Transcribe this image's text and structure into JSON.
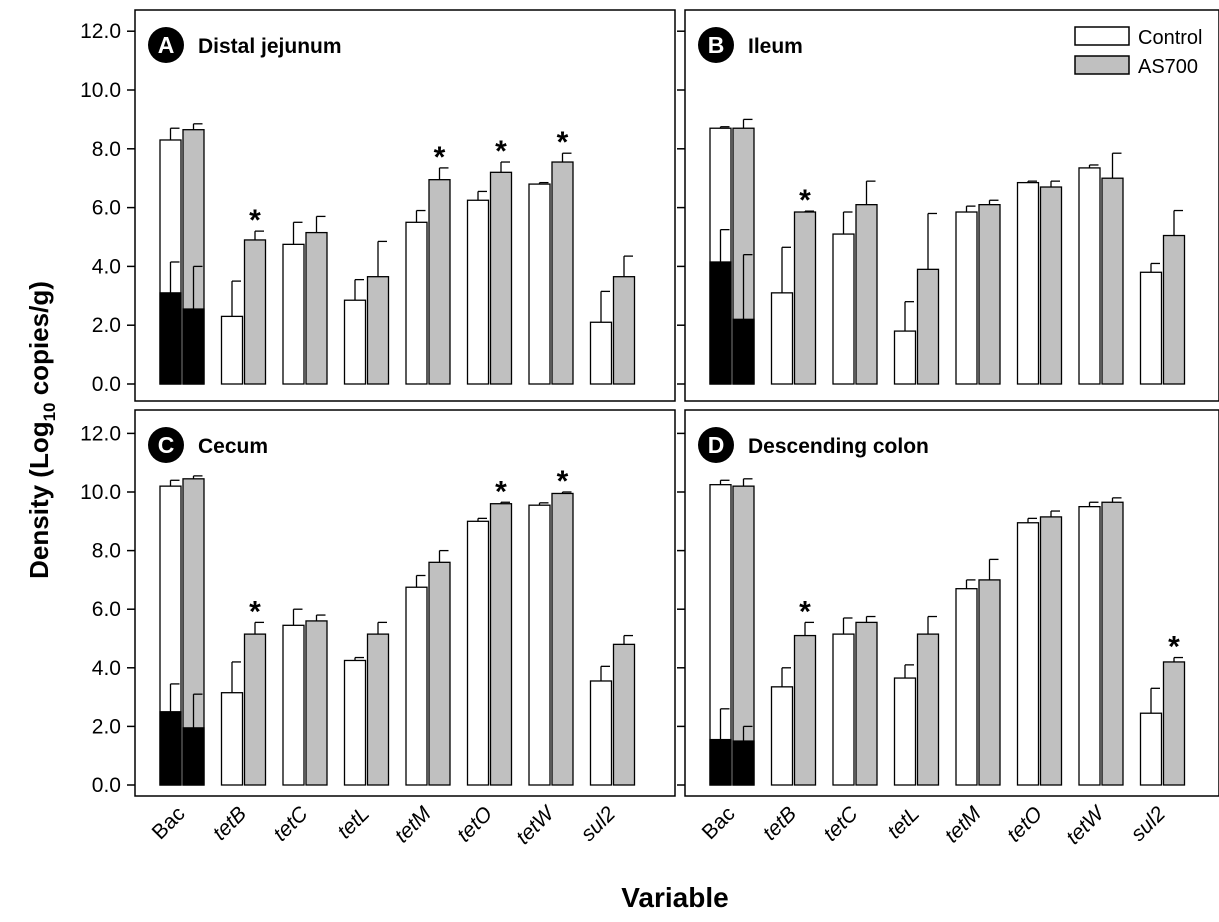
{
  "figure": {
    "y_axis_label": "Density (Log",
    "y_axis_label_sub": "10",
    "y_axis_label_tail": " copies/g)",
    "x_axis_label": "Variable",
    "legend": [
      "Control",
      "AS700"
    ],
    "colors": {
      "control": "#ffffff",
      "as700": "#c0c0c0",
      "black_portion": "#000000"
    }
  },
  "chart_data": [
    {
      "type": "bar",
      "panel": "A",
      "title": "Distal jejunum",
      "categories": [
        "Bac",
        "tetB",
        "tetC",
        "tetL",
        "tetM",
        "tetO",
        "tetW",
        "sul2"
      ],
      "ylim": [
        0,
        12
      ],
      "yticks": [
        "0.0",
        "2.0",
        "4.0",
        "6.0",
        "8.0",
        "10.0",
        "12.0"
      ],
      "series": [
        {
          "name": "Control",
          "values": [
            8.3,
            2.3,
            4.75,
            2.85,
            5.5,
            6.25,
            6.8,
            2.1
          ],
          "errors": [
            0.4,
            1.2,
            0.75,
            0.7,
            0.4,
            0.3,
            0.05,
            1.05
          ]
        },
        {
          "name": "AS700",
          "values": [
            8.65,
            4.9,
            5.15,
            3.65,
            6.95,
            7.2,
            7.55,
            3.65
          ],
          "errors": [
            0.2,
            0.3,
            0.55,
            1.2,
            0.4,
            0.35,
            0.3,
            0.7
          ]
        }
      ],
      "inner": {
        "control": 3.1,
        "as700": 2.55,
        "control_err": 1.05,
        "as700_err": 1.45
      },
      "significant": [
        false,
        true,
        false,
        false,
        true,
        true,
        true,
        false
      ]
    },
    {
      "type": "bar",
      "panel": "B",
      "title": "Ileum",
      "categories": [
        "Bac",
        "tetB",
        "tetC",
        "tetL",
        "tetM",
        "tetO",
        "tetW",
        "sul2"
      ],
      "ylim": [
        0,
        12
      ],
      "yticks": [
        "0.0",
        "2.0",
        "4.0",
        "6.0",
        "8.0",
        "10.0",
        "12.0"
      ],
      "series": [
        {
          "name": "Control",
          "values": [
            8.7,
            3.1,
            5.1,
            1.8,
            5.85,
            6.85,
            7.35,
            3.8
          ],
          "errors": [
            0.05,
            1.55,
            0.75,
            1.0,
            0.2,
            0.05,
            0.1,
            0.3
          ]
        },
        {
          "name": "AS700",
          "values": [
            8.7,
            5.85,
            6.1,
            3.9,
            6.1,
            6.7,
            7.0,
            5.05
          ],
          "errors": [
            0.3,
            0.03,
            0.8,
            1.9,
            0.15,
            0.2,
            0.85,
            0.85
          ]
        }
      ],
      "inner": {
        "control": 4.15,
        "as700": 2.2,
        "control_err": 1.1,
        "as700_err": 2.2
      },
      "significant": [
        false,
        true,
        false,
        false,
        false,
        false,
        false,
        false
      ]
    },
    {
      "type": "bar",
      "panel": "C",
      "title": "Cecum",
      "categories": [
        "Bac",
        "tetB",
        "tetC",
        "tetL",
        "tetM",
        "tetO",
        "tetW",
        "sul2"
      ],
      "ylim": [
        0,
        12
      ],
      "yticks": [
        "0.0",
        "2.0",
        "4.0",
        "6.0",
        "8.0",
        "10.0",
        "12.0"
      ],
      "series": [
        {
          "name": "Control",
          "values": [
            10.2,
            3.15,
            5.45,
            4.25,
            6.75,
            9.0,
            9.55,
            3.55
          ],
          "errors": [
            0.2,
            1.05,
            0.55,
            0.1,
            0.4,
            0.1,
            0.08,
            0.5
          ]
        },
        {
          "name": "AS700",
          "values": [
            10.45,
            5.15,
            5.6,
            5.15,
            7.6,
            9.6,
            9.95,
            4.8
          ],
          "errors": [
            0.1,
            0.4,
            0.2,
            0.4,
            0.4,
            0.05,
            0.05,
            0.3
          ]
        }
      ],
      "inner": {
        "control": 2.5,
        "as700": 1.95,
        "control_err": 0.95,
        "as700_err": 1.15
      },
      "significant": [
        false,
        true,
        false,
        false,
        false,
        true,
        true,
        false
      ]
    },
    {
      "type": "bar",
      "panel": "D",
      "title": "Descending colon",
      "categories": [
        "Bac",
        "tetB",
        "tetC",
        "tetL",
        "tetM",
        "tetO",
        "tetW",
        "sul2"
      ],
      "ylim": [
        0,
        12
      ],
      "yticks": [
        "0.0",
        "2.0",
        "4.0",
        "6.0",
        "8.0",
        "10.0",
        "12.0"
      ],
      "series": [
        {
          "name": "Control",
          "values": [
            10.25,
            3.35,
            5.15,
            3.65,
            6.7,
            8.95,
            9.5,
            2.45
          ],
          "errors": [
            0.15,
            0.65,
            0.55,
            0.45,
            0.3,
            0.15,
            0.15,
            0.85
          ]
        },
        {
          "name": "AS700",
          "values": [
            10.2,
            5.1,
            5.55,
            5.15,
            7.0,
            9.15,
            9.65,
            4.2
          ],
          "errors": [
            0.25,
            0.45,
            0.2,
            0.6,
            0.7,
            0.2,
            0.15,
            0.15
          ]
        }
      ],
      "inner": {
        "control": 1.55,
        "as700": 1.5,
        "control_err": 1.05,
        "as700_err": 0.5
      },
      "significant": [
        false,
        true,
        false,
        false,
        false,
        false,
        false,
        true
      ]
    }
  ]
}
